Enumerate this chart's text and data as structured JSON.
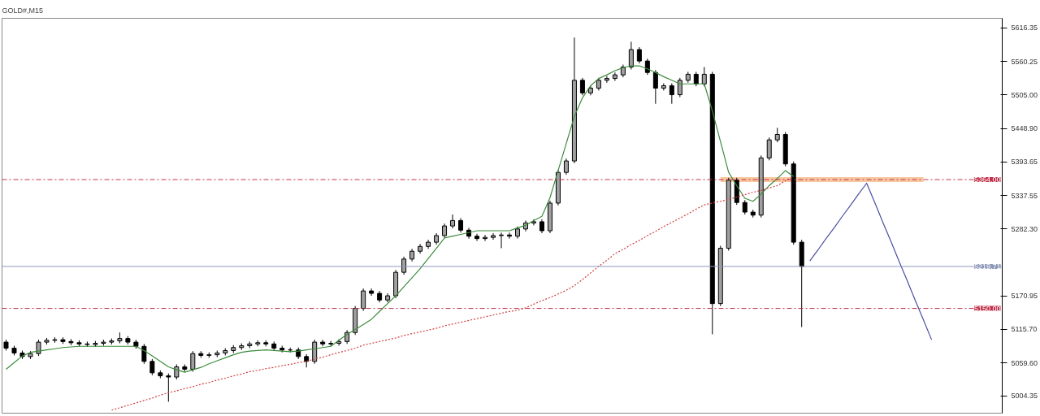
{
  "chart_data": {
    "type": "candlestick",
    "title": "GOLD#,M15",
    "categories": [
      null,
      null,
      null,
      null,
      null,
      null,
      null,
      null,
      null,
      null,
      null,
      null,
      null,
      null,
      null,
      null,
      null,
      null,
      null,
      null,
      null,
      null,
      null,
      null,
      null,
      null,
      null,
      null,
      null,
      null,
      null,
      null,
      null,
      null,
      null,
      null,
      null,
      null,
      null,
      null,
      null,
      null,
      null,
      null,
      null,
      null,
      null,
      null,
      null,
      null,
      null,
      null,
      null,
      null,
      null,
      null,
      null,
      null,
      null,
      null,
      null,
      null,
      null,
      null,
      null,
      null,
      null,
      null,
      null,
      null,
      null,
      null,
      null,
      null,
      null,
      null,
      null,
      null,
      null,
      null,
      null,
      null,
      null,
      null,
      null,
      null,
      null,
      null,
      null,
      null,
      null,
      null,
      null,
      null,
      null,
      null,
      null,
      null,
      null,
      null,
      null,
      null,
      null,
      null,
      null,
      null,
      null,
      null,
      null,
      null,
      null,
      null,
      null,
      null,
      null
    ],
    "ohlc": [
      [
        5094,
        5098,
        5080,
        5084
      ],
      [
        5084,
        5088,
        5072,
        5076
      ],
      [
        5076,
        5080,
        5066,
        5070
      ],
      [
        5070,
        5079,
        5066,
        5075
      ],
      [
        5075,
        5098,
        5071,
        5094
      ],
      [
        5094,
        5101,
        5090,
        5097
      ],
      [
        5097,
        5102,
        5093,
        5098
      ],
      [
        5098,
        5102,
        5091,
        5095
      ],
      [
        5095,
        5099,
        5089,
        5093
      ],
      [
        5093,
        5097,
        5087,
        5091
      ],
      [
        5091,
        5095,
        5086,
        5090
      ],
      [
        5090,
        5096,
        5086,
        5092
      ],
      [
        5092,
        5098,
        5088,
        5094
      ],
      [
        5094,
        5100,
        5090,
        5096
      ],
      [
        5096,
        5110,
        5092,
        5100
      ],
      [
        5100,
        5104,
        5090,
        5094
      ],
      [
        5094,
        5098,
        5083,
        5087
      ],
      [
        5087,
        5091,
        5058,
        5062
      ],
      [
        5062,
        5066,
        5039,
        5043
      ],
      [
        5043,
        5047,
        5034,
        5038
      ],
      [
        5038,
        5042,
        4995,
        5036
      ],
      [
        5036,
        5057,
        5032,
        5053
      ],
      [
        5053,
        5057,
        5045,
        5049
      ],
      [
        5049,
        5079,
        5045,
        5075
      ],
      [
        5075,
        5079,
        5068,
        5072
      ],
      [
        5072,
        5077,
        5068,
        5073
      ],
      [
        5073,
        5080,
        5069,
        5076
      ],
      [
        5076,
        5084,
        5072,
        5080
      ],
      [
        5080,
        5089,
        5076,
        5085
      ],
      [
        5085,
        5092,
        5081,
        5088
      ],
      [
        5088,
        5095,
        5084,
        5091
      ],
      [
        5091,
        5097,
        5087,
        5093
      ],
      [
        5093,
        5097,
        5087,
        5091
      ],
      [
        5091,
        5095,
        5080,
        5084
      ],
      [
        5084,
        5088,
        5077,
        5081
      ],
      [
        5081,
        5085,
        5077,
        5081
      ],
      [
        5081,
        5085,
        5066,
        5070
      ],
      [
        5070,
        5074,
        5052,
        5062
      ],
      [
        5062,
        5098,
        5058,
        5094
      ],
      [
        5094,
        5098,
        5087,
        5091
      ],
      [
        5091,
        5096,
        5087,
        5092
      ],
      [
        5092,
        5099,
        5088,
        5095
      ],
      [
        5095,
        5114,
        5091,
        5110
      ],
      [
        5110,
        5154,
        5106,
        5150
      ],
      [
        5150,
        5183,
        5146,
        5179
      ],
      [
        5179,
        5183,
        5171,
        5175
      ],
      [
        5175,
        5179,
        5160,
        5164
      ],
      [
        5164,
        5175,
        5160,
        5171
      ],
      [
        5171,
        5214,
        5167,
        5210
      ],
      [
        5210,
        5236,
        5206,
        5232
      ],
      [
        5232,
        5249,
        5228,
        5245
      ],
      [
        5245,
        5257,
        5241,
        5253
      ],
      [
        5253,
        5264,
        5249,
        5260
      ],
      [
        5260,
        5275,
        5256,
        5271
      ],
      [
        5271,
        5291,
        5267,
        5287
      ],
      [
        5287,
        5306,
        5283,
        5296
      ],
      [
        5296,
        5300,
        5276,
        5280
      ],
      [
        5280,
        5284,
        5266,
        5270
      ],
      [
        5270,
        5274,
        5262,
        5266
      ],
      [
        5266,
        5272,
        5262,
        5268
      ],
      [
        5268,
        5275,
        5264,
        5271
      ],
      [
        5271,
        5276,
        5250,
        5272
      ],
      [
        5272,
        5276,
        5266,
        5270
      ],
      [
        5270,
        5286,
        5266,
        5282
      ],
      [
        5282,
        5296,
        5278,
        5292
      ],
      [
        5292,
        5298,
        5288,
        5294
      ],
      [
        5294,
        5298,
        5275,
        5279
      ],
      [
        5279,
        5329,
        5275,
        5325
      ],
      [
        5325,
        5380,
        5321,
        5376
      ],
      [
        5376,
        5399,
        5372,
        5395
      ],
      [
        5395,
        5600,
        5391,
        5529
      ],
      [
        5529,
        5533,
        5504,
        5508
      ],
      [
        5508,
        5520,
        5504,
        5516
      ],
      [
        5516,
        5533,
        5512,
        5529
      ],
      [
        5529,
        5536,
        5525,
        5532
      ],
      [
        5532,
        5542,
        5528,
        5538
      ],
      [
        5538,
        5555,
        5534,
        5551
      ],
      [
        5551,
        5593,
        5547,
        5580
      ],
      [
        5580,
        5584,
        5557,
        5561
      ],
      [
        5561,
        5565,
        5538,
        5542
      ],
      [
        5542,
        5546,
        5490,
        5516
      ],
      [
        5516,
        5524,
        5512,
        5520
      ],
      [
        5520,
        5524,
        5490,
        5505
      ],
      [
        5505,
        5533,
        5501,
        5529
      ],
      [
        5529,
        5543,
        5525,
        5539
      ],
      [
        5539,
        5543,
        5519,
        5523
      ],
      [
        5523,
        5551,
        5519,
        5539
      ],
      [
        5539,
        5543,
        5107,
        5158
      ],
      [
        5158,
        5254,
        5154,
        5250
      ],
      [
        5250,
        5367,
        5246,
        5363
      ],
      [
        5363,
        5367,
        5322,
        5326
      ],
      [
        5326,
        5330,
        5306,
        5310
      ],
      [
        5310,
        5314,
        5301,
        5305
      ],
      [
        5305,
        5404,
        5301,
        5400
      ],
      [
        5400,
        5434,
        5396,
        5430
      ],
      [
        5430,
        5450,
        5426,
        5439
      ],
      [
        5439,
        5443,
        5386,
        5390
      ],
      [
        5390,
        5394,
        5256,
        5260
      ],
      [
        5260,
        5264,
        5119,
        5219.71
      ],
      null,
      null,
      null,
      null,
      null,
      null,
      null,
      null,
      null,
      null,
      null,
      null,
      null,
      null,
      null,
      null
    ],
    "series": [
      {
        "type": "line",
        "color": "#3c8c3c",
        "line_style": "solid",
        "values": [
          5049,
          5060,
          5071,
          5077,
          5079,
          5081,
          5083,
          5085,
          5086,
          5087,
          5087,
          5087,
          5087,
          5087,
          5087,
          5087,
          5087,
          5080,
          5071,
          5062,
          5053,
          5048,
          5044,
          5048,
          5052,
          5058,
          5063,
          5068,
          5073,
          5077,
          5079,
          5080,
          5081,
          5080,
          5079,
          5078,
          5079,
          5081,
          5083,
          5085,
          5087,
          5097,
          5107,
          5115,
          5123,
          5132,
          5145,
          5158,
          5171,
          5186,
          5201,
          5216,
          5233,
          5250,
          5267,
          5270,
          5273,
          5276,
          5279,
          5279,
          5279,
          5279,
          5279,
          5284,
          5288,
          5296,
          5303,
          5334,
          5379,
          5424,
          5469,
          5500,
          5520,
          5532,
          5538,
          5545,
          5550,
          5553,
          5553,
          5548,
          5542,
          5535,
          5529,
          5523,
          5523,
          5523,
          5523,
          5478,
          5427,
          5376,
          5354,
          5333,
          5328,
          5340,
          5354,
          5366,
          5379,
          5369,
          null,
          null,
          null,
          null,
          null,
          null,
          null,
          null,
          null,
          null,
          null,
          null,
          null,
          null,
          null,
          null,
          null
        ]
      },
      {
        "type": "line",
        "color": "#d04040",
        "line_style": "dotted",
        "values": [
          null,
          null,
          null,
          null,
          null,
          null,
          null,
          null,
          null,
          null,
          null,
          null,
          null,
          4981,
          4985,
          4989,
          4993,
          4997,
          5001,
          5006,
          5010,
          5013,
          5017,
          5020,
          5024,
          5027,
          5031,
          5034,
          5038,
          5041,
          5045,
          5047,
          5050,
          5052,
          5055,
          5057,
          5060,
          5062,
          5066,
          5069,
          5073,
          5077,
          5080,
          5084,
          5089,
          5092,
          5095,
          5098,
          5101,
          5105,
          5108,
          5111,
          5114,
          5117,
          5121,
          5124,
          5127,
          5130,
          5133,
          5136,
          5139,
          5142,
          5145,
          5147,
          5151,
          5157,
          5163,
          5168,
          5174,
          5180,
          5188,
          5198,
          5209,
          5220,
          5230,
          5241,
          5248,
          5256,
          5263,
          5271,
          5278,
          5286,
          5293,
          5300,
          5307,
          5315,
          5322,
          5325,
          5328,
          5331,
          5335,
          5339,
          5343,
          5346,
          5350,
          5354,
          5362,
          5369,
          null,
          null,
          null,
          null,
          null,
          null,
          null,
          null,
          null,
          null,
          null,
          null,
          null,
          null,
          null,
          null,
          null
        ]
      },
      {
        "type": "line",
        "color": "#4a4fa0",
        "line_style": "solid",
        "values": [
          null,
          null,
          null,
          null,
          null,
          null,
          null,
          null,
          null,
          null,
          null,
          null,
          null,
          null,
          null,
          null,
          null,
          null,
          null,
          null,
          null,
          null,
          null,
          null,
          null,
          null,
          null,
          null,
          null,
          null,
          null,
          null,
          null,
          null,
          null,
          null,
          null,
          null,
          null,
          null,
          null,
          null,
          null,
          null,
          null,
          null,
          null,
          null,
          null,
          null,
          null,
          null,
          null,
          null,
          null,
          null,
          null,
          null,
          null,
          null,
          null,
          null,
          null,
          null,
          null,
          null,
          null,
          null,
          null,
          null,
          null,
          null,
          null,
          null,
          null,
          null,
          null,
          null,
          null,
          null,
          null,
          null,
          null,
          null,
          null,
          null,
          null,
          null,
          null,
          null,
          null,
          null,
          null,
          null,
          null,
          null,
          null,
          null,
          null,
          5229,
          5247,
          5266,
          5284,
          5303,
          5321,
          5340,
          5358,
          5326,
          5293,
          5261,
          5228,
          5196,
          5163,
          5131,
          5098
        ]
      },
      {
        "type": "line",
        "color": "#f8c8a0",
        "line_style": "solid",
        "values": [
          null,
          null,
          null,
          null,
          null,
          null,
          null,
          null,
          null,
          null,
          null,
          null,
          null,
          null,
          null,
          null,
          null,
          null,
          null,
          null,
          null,
          null,
          null,
          null,
          null,
          null,
          null,
          null,
          null,
          null,
          null,
          null,
          null,
          null,
          null,
          null,
          null,
          null,
          null,
          null,
          null,
          null,
          null,
          null,
          null,
          null,
          null,
          null,
          null,
          null,
          null,
          null,
          null,
          null,
          null,
          null,
          null,
          null,
          null,
          null,
          null,
          null,
          null,
          null,
          null,
          null,
          null,
          null,
          null,
          null,
          null,
          null,
          null,
          null,
          null,
          null,
          null,
          null,
          null,
          null,
          null,
          null,
          null,
          null,
          null,
          null,
          null,
          null,
          5364,
          5364,
          5364,
          5364,
          5364,
          5364,
          5364,
          5364,
          5364,
          5364,
          5364,
          5364,
          5364,
          5364,
          5364,
          5364,
          5364,
          5364,
          5364,
          5364,
          5364,
          5364,
          5364,
          5364,
          5364,
          5364,
          null
        ]
      }
    ],
    "ref_lines": [
      {
        "axis": "y",
        "value": 5364,
        "label": "5364.00",
        "color": "#c0304a",
        "line_style": "dashed"
      },
      {
        "axis": "y",
        "value": 5150,
        "label": "5150.00",
        "color": "#c0304a",
        "line_style": "dashed"
      },
      {
        "axis": "y",
        "value": 5219.71,
        "label": "5219.71",
        "color": "#8e98b8",
        "line_style": "solid"
      }
    ],
    "ylim": [
      4976,
      5632
    ],
    "yticks": [
      {
        "value": 5004.35,
        "label": "5004.35"
      },
      {
        "value": 5059.6,
        "label": "5059.60"
      },
      {
        "value": 5115.7,
        "label": "5115.70"
      },
      {
        "value": 5170.95,
        "label": "5170.95"
      },
      {
        "value": 5282.3,
        "label": "5282.30"
      },
      {
        "value": 5337.55,
        "label": "5337.55"
      },
      {
        "value": 5393.65,
        "label": "5393.65"
      },
      {
        "value": 5448.9,
        "label": "5448.90"
      },
      {
        "value": 5505.0,
        "label": "5505.00"
      },
      {
        "value": 5560.25,
        "label": "5560.25"
      },
      {
        "value": 5616.35,
        "label": "5616.35"
      }
    ],
    "tick_labels": "y",
    "grid": false
  }
}
